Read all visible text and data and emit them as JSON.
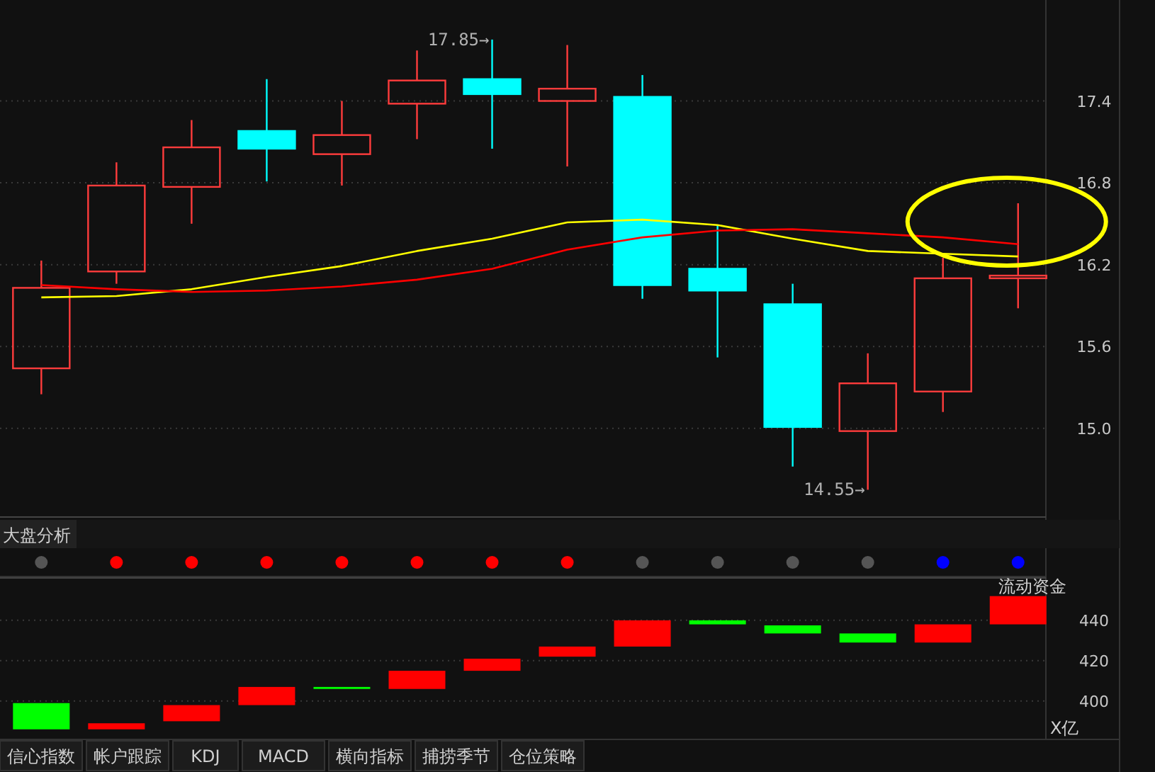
{
  "chart_data": [
    {
      "type": "candlestick",
      "categories": [
        null,
        null,
        null,
        null,
        null,
        null,
        null,
        null,
        null,
        null,
        null,
        null,
        null,
        null
      ],
      "ohlc": [
        [
          15.44,
          16.23,
          15.25,
          16.03
        ],
        [
          16.15,
          16.95,
          16.06,
          16.78
        ],
        [
          16.77,
          17.26,
          16.5,
          17.06
        ],
        [
          17.18,
          17.56,
          16.81,
          17.05
        ],
        [
          17.01,
          17.4,
          16.78,
          17.15
        ],
        [
          17.38,
          17.77,
          17.12,
          17.55
        ],
        [
          17.56,
          17.85,
          17.05,
          17.45
        ],
        [
          17.4,
          17.81,
          16.92,
          17.49
        ],
        [
          17.43,
          17.59,
          15.95,
          16.05
        ],
        [
          16.17,
          16.49,
          15.52,
          16.01
        ],
        [
          15.91,
          16.06,
          14.72,
          15.01
        ],
        [
          14.98,
          15.55,
          14.55,
          15.33
        ],
        [
          15.27,
          16.25,
          15.12,
          16.1
        ],
        [
          16.1,
          16.65,
          15.88,
          16.12
        ]
      ],
      "colors": [
        "#ff3c3c",
        "#ff3c3c",
        "#ff3c3c",
        "#00ffff",
        "#ff3c3c",
        "#ff3c3c",
        "#00ffff",
        "#ff3c3c",
        "#00ffff",
        "#00ffff",
        "#00ffff",
        "#ff3c3c",
        "#ff3c3c",
        "#ff3c3c"
      ],
      "series": [
        {
          "type": "line",
          "color": "#ffff00",
          "values": [
            15.96,
            15.97,
            16.02,
            16.11,
            16.19,
            16.3,
            16.39,
            16.51,
            16.53,
            16.49,
            16.39,
            16.3,
            16.28,
            16.26
          ]
        },
        {
          "type": "line",
          "color": "#ff0000",
          "values": [
            16.05,
            16.02,
            16.0,
            16.01,
            16.04,
            16.09,
            16.17,
            16.31,
            16.4,
            16.45,
            16.46,
            16.43,
            16.4,
            16.35
          ]
        }
      ],
      "ylim": [
        14.35,
        18.14
      ],
      "yticks": [
        {
          "value": 15,
          "label": "15.0"
        },
        15.6,
        16.2,
        16.8,
        17.4
      ],
      "grid": "y",
      "tick_labels": "y",
      "legend": false,
      "marker": "none",
      "annotations": [
        "17.85→",
        "14.55→"
      ]
    },
    {
      "type": "other",
      "title": "大盘分析",
      "colors": [
        "#555555",
        "#ff0000",
        "#ff0000",
        "#ff0000",
        "#ff0000",
        "#ff0000",
        "#ff0000",
        "#ff0000",
        "#555555",
        "#555555",
        "#555555",
        "#555555",
        "#0000ff",
        "#0000ff"
      ]
    },
    {
      "type": "bar",
      "title": "流动资金",
      "ylabel": "X亿",
      "categories": [
        null,
        null,
        null,
        null,
        null,
        null,
        null,
        null,
        null,
        null,
        null,
        null,
        null,
        null
      ],
      "base": [
        386,
        386,
        390,
        398,
        406,
        406,
        415,
        422,
        427,
        438,
        433.5,
        429,
        429,
        438
      ],
      "values": [
        13,
        3,
        8,
        9,
        1,
        9,
        6,
        5,
        13,
        2,
        4,
        4.5,
        9,
        14
      ],
      "colors": [
        "#00ff00",
        "#ff0000",
        "#ff0000",
        "#ff0000",
        "#00ff00",
        "#ff0000",
        "#ff0000",
        "#ff0000",
        "#ff0000",
        "#00ff00",
        "#00ff00",
        "#00ff00",
        "#ff0000",
        "#ff0000"
      ],
      "ylim": [
        381,
        461
      ],
      "yticks": [
        400,
        420,
        440
      ],
      "grid": "y",
      "tick_labels": "y",
      "annotations": [
        "信心指数",
        "帐户跟踪",
        "KDJ",
        "MACD",
        "横向指标",
        "捕捞季节",
        "仓位策略"
      ]
    }
  ]
}
